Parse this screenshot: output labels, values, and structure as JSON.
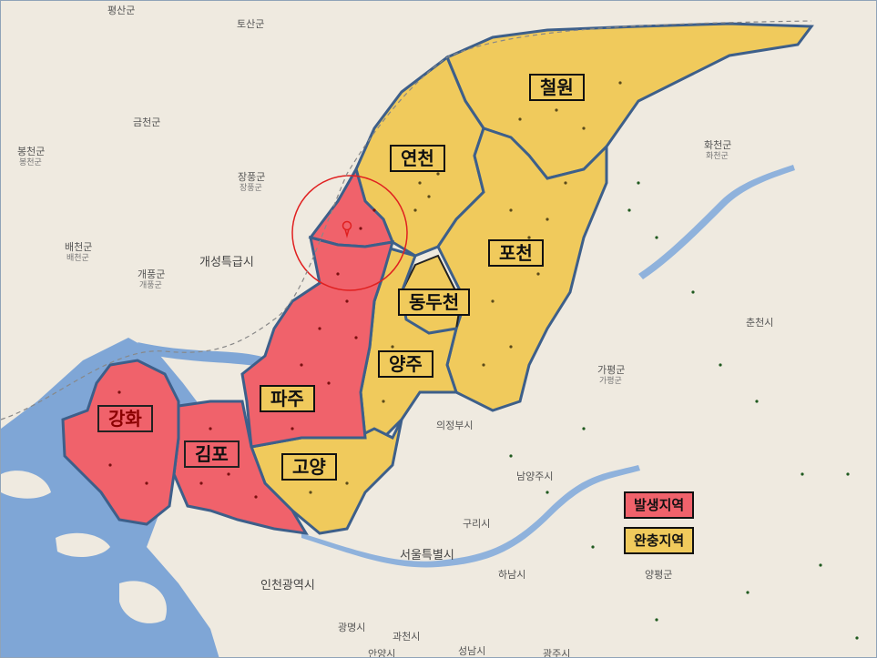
{
  "regions": {
    "cheorwon": "철원",
    "yeoncheon": "연천",
    "pocheon": "포천",
    "dongducheon": "동두천",
    "yangju": "양주",
    "paju": "파주",
    "goyang": "고양",
    "gimpo": "김포",
    "ganghwa": "강화"
  },
  "legend": {
    "outbreak": "발생지역",
    "buffer": "완충지역"
  },
  "colors": {
    "outbreak": "#f0626b",
    "buffer": "#f0ca5c",
    "border": "#3d5f8a",
    "water": "#7fa6d6",
    "land": "#efeae0",
    "circle": "#e02020"
  },
  "places": {
    "pyeongsan": "평산군",
    "tosan": "토산군",
    "geumcheon": "금천군",
    "bongcheon": "봉천군",
    "bongcheon_sub": "봉천군",
    "baecheon": "배천군",
    "baecheon_sub": "배천군",
    "jangpung": "장풍군",
    "jangpung_sub": "장풍군",
    "kaesong": "개성특급시",
    "gaepung": "개풍군",
    "gaepung_sub": "개풍군",
    "hwacheon": "화천군",
    "hwacheon_sub": "화천군",
    "chuncheon": "춘천시",
    "gapyeong": "가평군",
    "gapyeong_sub": "가평군",
    "uijeongbu": "의정부시",
    "namyangju": "남양주시",
    "guri": "구리시",
    "seoul": "서울특별시",
    "hanam": "하남시",
    "yangpyeong": "양평군",
    "incheon": "인천광역시",
    "gwangmyeong": "광명시",
    "gwacheon": "과천시",
    "anyang": "안양시",
    "seongnam": "성남시",
    "gwangju": "광주시"
  }
}
